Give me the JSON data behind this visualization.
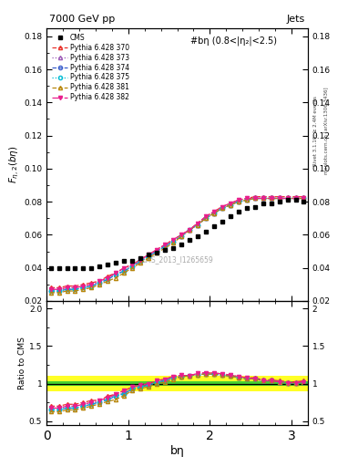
{
  "title_left": "7000 GeV pp",
  "title_right": "Jets",
  "annotation": "#bη (0.8<|η₂|<2.5)",
  "watermark": "CMS_2013_I1265659",
  "xlabel": "bη",
  "ylabel_ratio": "Ratio to CMS",
  "right_label_top": "Rivet 3.1.10; ≥ 2.4M events",
  "right_label_bottom": "mcplots.cern.ch [arXiv:1306.3436]",
  "xlim": [
    0,
    3.2
  ],
  "ylim_main": [
    0.02,
    0.185
  ],
  "ylim_ratio": [
    0.45,
    2.1
  ],
  "yticks_main": [
    0.02,
    0.04,
    0.06,
    0.08,
    0.1,
    0.12,
    0.14,
    0.16,
    0.18
  ],
  "yticks_ratio": [
    0.5,
    1.0,
    1.5,
    2.0
  ],
  "cms_x": [
    0.05,
    0.15,
    0.25,
    0.35,
    0.45,
    0.55,
    0.65,
    0.75,
    0.85,
    0.95,
    1.05,
    1.15,
    1.25,
    1.35,
    1.45,
    1.55,
    1.65,
    1.75,
    1.85,
    1.95,
    2.05,
    2.15,
    2.25,
    2.35,
    2.45,
    2.55,
    2.65,
    2.75,
    2.85,
    2.95,
    3.05,
    3.15
  ],
  "cms_y": [
    0.04,
    0.04,
    0.04,
    0.04,
    0.04,
    0.04,
    0.041,
    0.042,
    0.043,
    0.044,
    0.044,
    0.046,
    0.048,
    0.049,
    0.051,
    0.052,
    0.054,
    0.057,
    0.059,
    0.062,
    0.065,
    0.068,
    0.071,
    0.074,
    0.076,
    0.077,
    0.079,
    0.079,
    0.08,
    0.081,
    0.081,
    0.08
  ],
  "lines": [
    {
      "label": "Pythia 6.428 370",
      "color": "#e8312a",
      "linestyle": "--",
      "marker": "^",
      "markerfacecolor": "none",
      "x": [
        0.05,
        0.15,
        0.25,
        0.35,
        0.45,
        0.55,
        0.65,
        0.75,
        0.85,
        0.95,
        1.05,
        1.15,
        1.25,
        1.35,
        1.45,
        1.55,
        1.65,
        1.75,
        1.85,
        1.95,
        2.05,
        2.15,
        2.25,
        2.35,
        2.45,
        2.55,
        2.65,
        2.75,
        2.85,
        2.95,
        3.05,
        3.15
      ],
      "y": [
        0.028,
        0.028,
        0.029,
        0.029,
        0.03,
        0.031,
        0.032,
        0.035,
        0.037,
        0.04,
        0.042,
        0.045,
        0.048,
        0.051,
        0.054,
        0.057,
        0.06,
        0.063,
        0.067,
        0.071,
        0.074,
        0.077,
        0.079,
        0.081,
        0.082,
        0.083,
        0.083,
        0.083,
        0.083,
        0.083,
        0.083,
        0.083
      ]
    },
    {
      "label": "Pythia 6.428 373",
      "color": "#9b59b6",
      "linestyle": ":",
      "marker": "^",
      "markerfacecolor": "none",
      "x": [
        0.05,
        0.15,
        0.25,
        0.35,
        0.45,
        0.55,
        0.65,
        0.75,
        0.85,
        0.95,
        1.05,
        1.15,
        1.25,
        1.35,
        1.45,
        1.55,
        1.65,
        1.75,
        1.85,
        1.95,
        2.05,
        2.15,
        2.25,
        2.35,
        2.45,
        2.55,
        2.65,
        2.75,
        2.85,
        2.95,
        3.05,
        3.15
      ],
      "y": [
        0.027,
        0.027,
        0.028,
        0.028,
        0.029,
        0.03,
        0.031,
        0.034,
        0.036,
        0.039,
        0.041,
        0.044,
        0.047,
        0.05,
        0.053,
        0.056,
        0.059,
        0.063,
        0.066,
        0.07,
        0.073,
        0.076,
        0.078,
        0.08,
        0.081,
        0.082,
        0.082,
        0.082,
        0.082,
        0.082,
        0.082,
        0.082
      ]
    },
    {
      "label": "Pythia 6.428 374",
      "color": "#3a5fcd",
      "linestyle": "--",
      "marker": "o",
      "markerfacecolor": "none",
      "x": [
        0.05,
        0.15,
        0.25,
        0.35,
        0.45,
        0.55,
        0.65,
        0.75,
        0.85,
        0.95,
        1.05,
        1.15,
        1.25,
        1.35,
        1.45,
        1.55,
        1.65,
        1.75,
        1.85,
        1.95,
        2.05,
        2.15,
        2.25,
        2.35,
        2.45,
        2.55,
        2.65,
        2.75,
        2.85,
        2.95,
        3.05,
        3.15
      ],
      "y": [
        0.026,
        0.026,
        0.027,
        0.027,
        0.028,
        0.029,
        0.031,
        0.033,
        0.036,
        0.038,
        0.041,
        0.044,
        0.047,
        0.05,
        0.053,
        0.056,
        0.059,
        0.063,
        0.066,
        0.07,
        0.073,
        0.076,
        0.078,
        0.08,
        0.081,
        0.082,
        0.082,
        0.082,
        0.082,
        0.082,
        0.082,
        0.082
      ]
    },
    {
      "label": "Pythia 6.428 375",
      "color": "#00bcd4",
      "linestyle": ":",
      "marker": "o",
      "markerfacecolor": "none",
      "x": [
        0.05,
        0.15,
        0.25,
        0.35,
        0.45,
        0.55,
        0.65,
        0.75,
        0.85,
        0.95,
        1.05,
        1.15,
        1.25,
        1.35,
        1.45,
        1.55,
        1.65,
        1.75,
        1.85,
        1.95,
        2.05,
        2.15,
        2.25,
        2.35,
        2.45,
        2.55,
        2.65,
        2.75,
        2.85,
        2.95,
        3.05,
        3.15
      ],
      "y": [
        0.026,
        0.026,
        0.027,
        0.027,
        0.028,
        0.029,
        0.031,
        0.033,
        0.036,
        0.038,
        0.041,
        0.044,
        0.047,
        0.05,
        0.053,
        0.056,
        0.059,
        0.063,
        0.066,
        0.07,
        0.073,
        0.076,
        0.078,
        0.08,
        0.081,
        0.082,
        0.082,
        0.082,
        0.082,
        0.082,
        0.082,
        0.082
      ]
    },
    {
      "label": "Pythia 6.428 381",
      "color": "#b8860b",
      "linestyle": "--",
      "marker": "^",
      "markerfacecolor": "none",
      "x": [
        0.05,
        0.15,
        0.25,
        0.35,
        0.45,
        0.55,
        0.65,
        0.75,
        0.85,
        0.95,
        1.05,
        1.15,
        1.25,
        1.35,
        1.45,
        1.55,
        1.65,
        1.75,
        1.85,
        1.95,
        2.05,
        2.15,
        2.25,
        2.35,
        2.45,
        2.55,
        2.65,
        2.75,
        2.85,
        2.95,
        3.05,
        3.15
      ],
      "y": [
        0.025,
        0.025,
        0.026,
        0.026,
        0.027,
        0.028,
        0.03,
        0.032,
        0.034,
        0.037,
        0.04,
        0.043,
        0.046,
        0.049,
        0.052,
        0.055,
        0.059,
        0.063,
        0.066,
        0.07,
        0.073,
        0.076,
        0.078,
        0.08,
        0.081,
        0.082,
        0.082,
        0.082,
        0.082,
        0.082,
        0.082,
        0.082
      ]
    },
    {
      "label": "Pythia 6.428 382",
      "color": "#e91e8c",
      "linestyle": "-.",
      "marker": "v",
      "markerfacecolor": "#e91e8c",
      "x": [
        0.05,
        0.15,
        0.25,
        0.35,
        0.45,
        0.55,
        0.65,
        0.75,
        0.85,
        0.95,
        1.05,
        1.15,
        1.25,
        1.35,
        1.45,
        1.55,
        1.65,
        1.75,
        1.85,
        1.95,
        2.05,
        2.15,
        2.25,
        2.35,
        2.45,
        2.55,
        2.65,
        2.75,
        2.85,
        2.95,
        3.05,
        3.15
      ],
      "y": [
        0.027,
        0.027,
        0.028,
        0.028,
        0.029,
        0.03,
        0.032,
        0.034,
        0.037,
        0.04,
        0.042,
        0.045,
        0.048,
        0.051,
        0.054,
        0.057,
        0.06,
        0.063,
        0.067,
        0.071,
        0.074,
        0.077,
        0.079,
        0.081,
        0.082,
        0.082,
        0.082,
        0.082,
        0.082,
        0.082,
        0.082,
        0.082
      ]
    }
  ],
  "band_yellow_lo": 0.9,
  "band_yellow_hi": 1.1,
  "band_green_lo": 0.97,
  "band_green_hi": 1.03
}
